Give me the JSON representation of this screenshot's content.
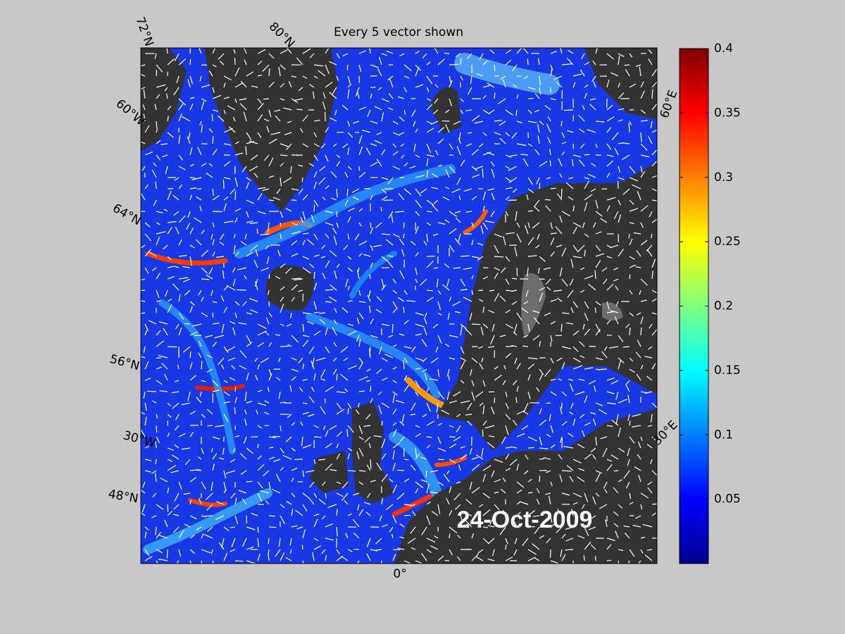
{
  "title": "Every 5 vector shown",
  "date_label": "24-Oct-2009",
  "graticule_labels": [
    "72°N",
    "80°N",
    "60°W",
    "64°N",
    "56°N",
    "30°W",
    "48°N",
    "0°",
    "30°E",
    "60°E"
  ],
  "colorbar": {
    "lim": [
      0,
      0.4
    ],
    "ticks": [
      0.05,
      0.1,
      0.15,
      0.2,
      0.25,
      0.3,
      0.35,
      0.4
    ]
  }
}
